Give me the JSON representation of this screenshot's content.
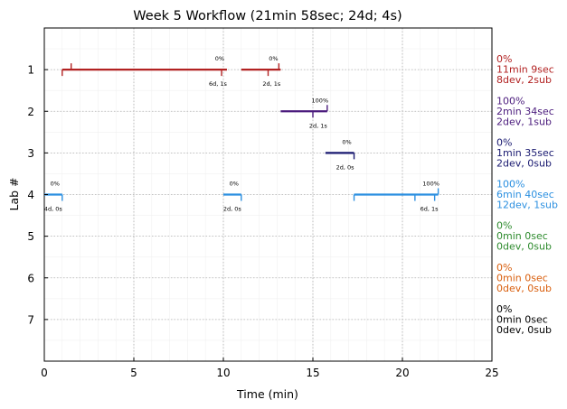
{
  "chart_data": {
    "type": "timeline",
    "title": "Week 5 Workflow (21min 58sec; 24d; 4s)",
    "xlabel": "Time (min)",
    "ylabel": "Lab #",
    "xlim": [
      0,
      25
    ],
    "ylim": [
      8,
      0
    ],
    "xticks": [
      0,
      5,
      10,
      15,
      20,
      25
    ],
    "yticks": [
      1,
      2,
      3,
      4,
      5,
      6,
      7
    ],
    "grid": true,
    "labs": [
      {
        "lab": 1,
        "color": "#b22222",
        "summary": [
          "0%",
          "11min 9sec",
          "8dev, 2sub"
        ],
        "segments": [
          {
            "start": 1.0,
            "end": 10.2,
            "pct": "0%",
            "counts": "6d, 1s",
            "up_ticks": [
              1.5
            ],
            "down_ticks": [
              1.0,
              9.9
            ]
          },
          {
            "start": 11.0,
            "end": 13.2,
            "pct": "0%",
            "counts": "2d, 1s",
            "up_ticks": [
              13.1
            ],
            "down_ticks": [
              12.5
            ]
          }
        ]
      },
      {
        "lab": 2,
        "color": "#4b1c7d",
        "summary": [
          "100%",
          "2min 34sec",
          "2dev, 1sub"
        ],
        "segments": [
          {
            "start": 13.2,
            "end": 15.8,
            "pct": "100%",
            "counts": "2d, 1s",
            "up_ticks": [
              15.8
            ],
            "down_ticks": [
              15.0
            ]
          }
        ]
      },
      {
        "lab": 3,
        "color": "#191970",
        "summary": [
          "0%",
          "1min 35sec",
          "2dev, 0sub"
        ],
        "segments": [
          {
            "start": 15.7,
            "end": 17.3,
            "pct": "0%",
            "counts": "2d, 0s",
            "up_ticks": [],
            "down_ticks": [
              17.3
            ]
          }
        ]
      },
      {
        "lab": 4,
        "color": "#2b8fe0",
        "summary": [
          "100%",
          "6min 40sec",
          "12dev, 1sub"
        ],
        "segments": [
          {
            "start": 0.0,
            "end": 1.0,
            "pct": "0%",
            "counts": "4d, 0s",
            "up_ticks": [],
            "down_ticks": [
              1.0
            ]
          },
          {
            "start": 10.0,
            "end": 11.0,
            "pct": "0%",
            "counts": "2d, 0s",
            "up_ticks": [],
            "down_ticks": [
              11.0
            ]
          },
          {
            "start": 17.3,
            "end": 22.0,
            "pct": "100%",
            "counts": "6d, 1s",
            "up_ticks": [
              22.0
            ],
            "down_ticks": [
              17.3,
              20.7,
              21.8
            ]
          }
        ]
      },
      {
        "lab": 5,
        "color": "#2e8b2e",
        "summary": [
          "0%",
          "0min 0sec",
          "0dev, 0sub"
        ],
        "segments": []
      },
      {
        "lab": 6,
        "color": "#d95f0e",
        "summary": [
          "0%",
          "0min 0sec",
          "0dev, 0sub"
        ],
        "segments": []
      },
      {
        "lab": 7,
        "color": "#000000",
        "summary": [
          "0%",
          "0min 0sec",
          "0dev, 0sub"
        ],
        "segments": []
      }
    ]
  }
}
